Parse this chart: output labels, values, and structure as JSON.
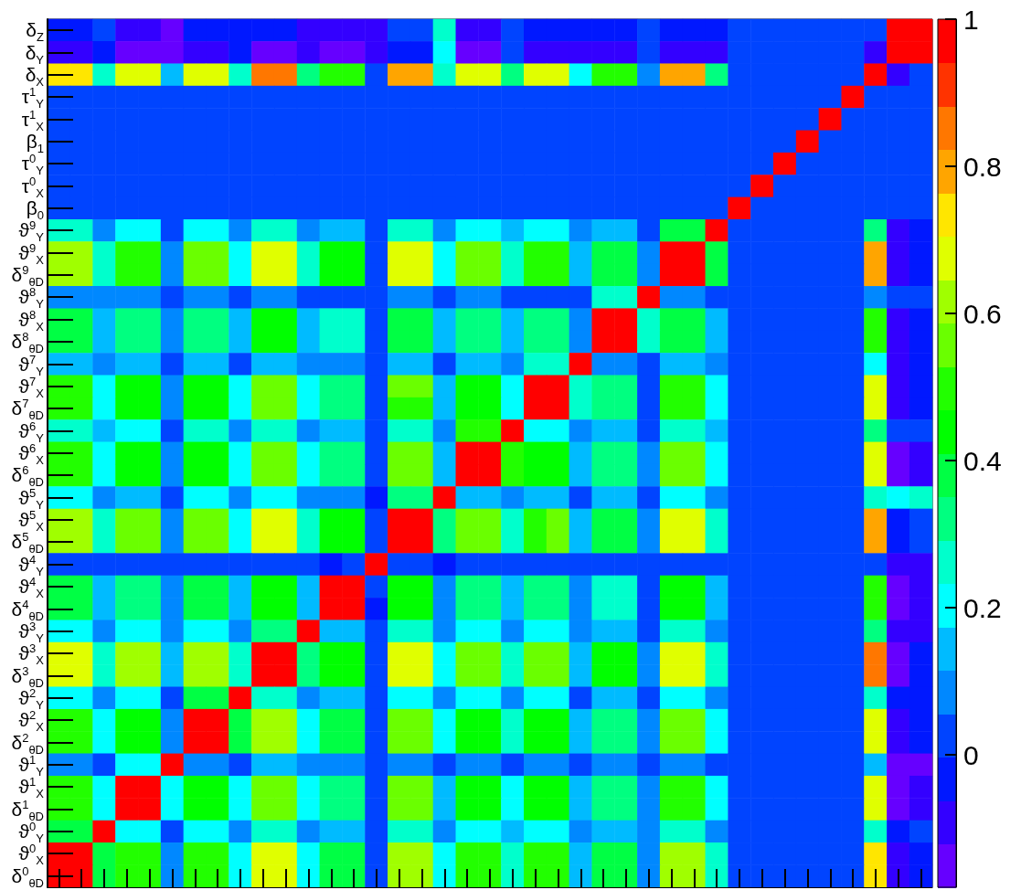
{
  "chart_data": {
    "type": "heatmap",
    "categories": [
      null,
      null,
      null,
      null,
      null,
      null,
      null,
      null,
      null,
      null,
      null,
      null,
      null,
      null,
      null,
      null,
      null,
      null,
      null,
      null,
      null,
      null,
      null,
      null,
      null,
      null,
      null,
      null,
      null,
      null,
      null,
      null,
      null,
      null,
      null,
      null,
      null,
      null,
      null
    ],
    "y_categories": [
      "δ$_{Z}$",
      "δ$_{Y}$",
      "δ$_{X}$",
      "τ$^{1}$$_{Y}$",
      "τ$^{1}$$_{X}$",
      "β$_{1}$",
      "τ$^{0}$$_{Y}$",
      "τ$^{0}$$_{X}$",
      "β$_{0}$",
      "ϑ$^{9}$$_{Y}$",
      "ϑ$^{9}$$_{X}$",
      "δ$^{9}$$_{θD}$",
      "ϑ$^{8}$$_{Y}$",
      "ϑ$^{8}$$_{X}$",
      "δ$^{8}$$_{θD}$",
      "ϑ$^{7}$$_{Y}$",
      "ϑ$^{7}$$_{X}$",
      "δ$^{7}$$_{θD}$",
      "ϑ$^{6}$$_{Y}$",
      "ϑ$^{6}$$_{X}$",
      "δ$^{6}$$_{θD}$",
      "ϑ$^{5}$$_{Y}$",
      "ϑ$^{5}$$_{X}$",
      "δ$^{5}$$_{θD}$",
      "ϑ$^{4}$$_{Y}$",
      "ϑ$^{4}$$_{X}$",
      "δ$^{4}$$_{θD}$",
      "ϑ$^{3}$$_{Y}$",
      "ϑ$^{3}$$_{X}$",
      "δ$^{3}$$_{θD}$",
      "ϑ$^{2}$$_{Y}$",
      "ϑ$^{2}$$_{X}$",
      "δ$^{2}$$_{θD}$",
      "ϑ$^{1}$$_{Y}$",
      "ϑ$^{1}$$_{X}$",
      "δ$^{1}$$_{θD}$",
      "ϑ$^{0}$$_{Y}$",
      "ϑ$^{0}$$_{X}$",
      "δ$^{0}$$_{θD}$"
    ],
    "cells": [
      [
        -0.03,
        -0.03,
        0.03,
        -0.09,
        -0.09,
        -0.15,
        -0.03,
        -0.03,
        -0.03,
        -0.03,
        -0.03,
        -0.09,
        -0.09,
        -0.09,
        -0.09,
        0.03,
        0.03,
        0.26,
        -0.09,
        -0.09,
        0.03,
        -0.03,
        -0.03,
        -0.03,
        -0.03,
        -0.03,
        0.03,
        -0.03,
        -0.03,
        -0.03,
        0.03,
        0.03,
        0.03,
        0.03,
        0.03,
        0.03,
        0.03,
        0.97,
        1
      ],
      [
        -0.09,
        -0.09,
        -0.03,
        -0.15,
        -0.15,
        -0.15,
        -0.09,
        -0.09,
        -0.03,
        -0.15,
        -0.15,
        -0.09,
        -0.15,
        -0.15,
        -0.09,
        -0.03,
        -0.03,
        0.2,
        -0.15,
        -0.15,
        0.03,
        -0.09,
        -0.09,
        -0.09,
        -0.09,
        -0.09,
        0.03,
        -0.09,
        -0.09,
        -0.09,
        0.03,
        0.03,
        0.03,
        0.03,
        0.03,
        0.03,
        -0.09,
        1,
        0.97
      ],
      [
        0.73,
        0.73,
        0.26,
        0.68,
        0.68,
        0.14,
        0.68,
        0.68,
        0.26,
        0.85,
        0.85,
        0.32,
        0.5,
        0.5,
        0.03,
        0.79,
        0.79,
        0.26,
        0.68,
        0.68,
        0.32,
        0.68,
        0.68,
        0.2,
        0.5,
        0.5,
        0.09,
        0.79,
        0.79,
        0.32,
        0.03,
        0.03,
        0.03,
        0.03,
        0.03,
        0.03,
        1,
        -0.09,
        0.03
      ],
      [
        0.03,
        0.03,
        0.03,
        0.03,
        0.03,
        0.03,
        0.03,
        0.03,
        0.03,
        0.03,
        0.03,
        0.03,
        0.03,
        0.03,
        0.03,
        0.03,
        0.03,
        0.03,
        0.03,
        0.03,
        0.03,
        0.03,
        0.03,
        0.03,
        0.03,
        0.03,
        0.03,
        0.03,
        0.03,
        0.03,
        0.03,
        0.03,
        0.03,
        0.03,
        0.03,
        1,
        0.03,
        0.03,
        0.03
      ],
      [
        0.03,
        0.03,
        0.03,
        0.03,
        0.03,
        0.03,
        0.03,
        0.03,
        0.03,
        0.03,
        0.03,
        0.03,
        0.03,
        0.03,
        0.03,
        0.03,
        0.03,
        0.03,
        0.03,
        0.03,
        0.03,
        0.03,
        0.03,
        0.03,
        0.03,
        0.03,
        0.03,
        0.03,
        0.03,
        0.03,
        0.03,
        0.03,
        0.03,
        0.03,
        1,
        0.03,
        0.03,
        0.03,
        0.03
      ],
      [
        0.03,
        0.03,
        0.03,
        0.03,
        0.03,
        0.03,
        0.03,
        0.03,
        0.03,
        0.03,
        0.03,
        0.03,
        0.03,
        0.03,
        0.03,
        0.03,
        0.03,
        0.03,
        0.03,
        0.03,
        0.03,
        0.03,
        0.03,
        0.03,
        0.03,
        0.03,
        0.03,
        0.03,
        0.03,
        0.03,
        0.03,
        0.03,
        0.03,
        1,
        0.03,
        0.03,
        0.03,
        0.03,
        0.03
      ],
      [
        0.03,
        0.03,
        0.03,
        0.03,
        0.03,
        0.03,
        0.03,
        0.03,
        0.03,
        0.03,
        0.03,
        0.03,
        0.03,
        0.03,
        0.03,
        0.03,
        0.03,
        0.03,
        0.03,
        0.03,
        0.03,
        0.03,
        0.03,
        0.03,
        0.03,
        0.03,
        0.03,
        0.03,
        0.03,
        0.03,
        0.03,
        0.03,
        1,
        0.03,
        0.03,
        0.03,
        0.03,
        0.03,
        0.03
      ],
      [
        0.03,
        0.03,
        0.03,
        0.03,
        0.03,
        0.03,
        0.03,
        0.03,
        0.03,
        0.03,
        0.03,
        0.03,
        0.03,
        0.03,
        0.03,
        0.03,
        0.03,
        0.03,
        0.03,
        0.03,
        0.03,
        0.03,
        0.03,
        0.03,
        0.03,
        0.03,
        0.03,
        0.03,
        0.03,
        0.03,
        0.03,
        1,
        0.03,
        0.03,
        0.03,
        0.03,
        0.03,
        0.03,
        0.03
      ],
      [
        0.03,
        0.03,
        0.03,
        0.03,
        0.03,
        0.03,
        0.03,
        0.03,
        0.03,
        0.03,
        0.03,
        0.03,
        0.03,
        0.03,
        0.03,
        0.03,
        0.03,
        0.03,
        0.03,
        0.03,
        0.03,
        0.03,
        0.03,
        0.03,
        0.03,
        0.03,
        0.03,
        0.03,
        0.03,
        0.03,
        1,
        0.03,
        0.03,
        0.03,
        0.03,
        0.03,
        0.03,
        0.03,
        0.03
      ],
      [
        0.26,
        0.26,
        0.09,
        0.2,
        0.2,
        0.03,
        0.2,
        0.2,
        0.09,
        0.26,
        0.26,
        0.09,
        0.14,
        0.14,
        0.03,
        0.26,
        0.26,
        0.09,
        0.2,
        0.2,
        0.14,
        0.2,
        0.2,
        0.09,
        0.14,
        0.14,
        0.03,
        0.38,
        0.38,
        1,
        0.03,
        0.03,
        0.03,
        0.03,
        0.03,
        0.03,
        0.32,
        -0.09,
        -0.03
      ],
      [
        0.62,
        0.62,
        0.26,
        0.5,
        0.5,
        0.09,
        0.56,
        0.56,
        0.2,
        0.68,
        0.68,
        0.26,
        0.44,
        0.44,
        0.03,
        0.68,
        0.68,
        0.2,
        0.56,
        0.56,
        0.26,
        0.5,
        0.5,
        0.14,
        0.38,
        0.38,
        0.09,
        0.97,
        1,
        0.38,
        0.03,
        0.03,
        0.03,
        0.03,
        0.03,
        0.03,
        0.79,
        -0.09,
        -0.03
      ],
      [
        0.62,
        0.62,
        0.26,
        0.5,
        0.5,
        0.09,
        0.56,
        0.56,
        0.2,
        0.68,
        0.68,
        0.26,
        0.44,
        0.44,
        0.03,
        0.68,
        0.68,
        0.2,
        0.56,
        0.56,
        0.26,
        0.5,
        0.5,
        0.14,
        0.38,
        0.38,
        0.09,
        1,
        0.97,
        0.38,
        0.03,
        0.03,
        0.03,
        0.03,
        0.03,
        0.03,
        0.79,
        -0.09,
        -0.03
      ],
      [
        0.09,
        0.09,
        0.09,
        0.09,
        0.09,
        0.03,
        0.09,
        0.09,
        0.03,
        0.09,
        0.09,
        0.03,
        0.03,
        0.03,
        0.03,
        0.09,
        0.09,
        0.03,
        0.09,
        0.09,
        0.03,
        0.03,
        0.03,
        0.03,
        0.26,
        0.26,
        1,
        0.09,
        0.09,
        0.03,
        0.03,
        0.03,
        0.03,
        0.03,
        0.03,
        0.03,
        0.09,
        0.03,
        0.03
      ],
      [
        0.38,
        0.38,
        0.14,
        0.32,
        0.32,
        0.09,
        0.32,
        0.32,
        0.14,
        0.44,
        0.44,
        0.14,
        0.26,
        0.26,
        0.03,
        0.38,
        0.38,
        0.14,
        0.32,
        0.32,
        0.14,
        0.32,
        0.32,
        0.09,
        0.97,
        1,
        0.26,
        0.38,
        0.38,
        0.14,
        0.03,
        0.03,
        0.03,
        0.03,
        0.03,
        0.03,
        0.5,
        -0.09,
        -0.03
      ],
      [
        0.38,
        0.38,
        0.14,
        0.32,
        0.32,
        0.09,
        0.32,
        0.32,
        0.14,
        0.44,
        0.44,
        0.14,
        0.26,
        0.26,
        0.03,
        0.38,
        0.38,
        0.14,
        0.32,
        0.32,
        0.14,
        0.32,
        0.32,
        0.09,
        1,
        0.97,
        0.26,
        0.38,
        0.38,
        0.14,
        0.03,
        0.03,
        0.03,
        0.03,
        0.03,
        0.03,
        0.5,
        -0.09,
        -0.03
      ],
      [
        0.14,
        0.14,
        0.09,
        0.14,
        0.14,
        0.03,
        0.14,
        0.14,
        0.03,
        0.14,
        0.14,
        0.09,
        0.09,
        0.09,
        0.03,
        0.14,
        0.14,
        0.03,
        0.14,
        0.14,
        0.09,
        0.26,
        0.26,
        1,
        0.09,
        0.09,
        0.03,
        0.14,
        0.14,
        0.09,
        0.03,
        0.03,
        0.03,
        0.03,
        0.03,
        0.03,
        0.2,
        -0.09,
        -0.03
      ],
      [
        0.5,
        0.5,
        0.2,
        0.44,
        0.44,
        0.09,
        0.44,
        0.44,
        0.2,
        0.56,
        0.56,
        0.2,
        0.32,
        0.32,
        0.03,
        0.56,
        0.56,
        0.14,
        0.44,
        0.44,
        0.2,
        0.97,
        1,
        0.26,
        0.32,
        0.32,
        0.03,
        0.5,
        0.5,
        0.2,
        0.03,
        0.03,
        0.03,
        0.03,
        0.03,
        0.03,
        0.68,
        -0.09,
        -0.03
      ],
      [
        0.5,
        0.5,
        0.2,
        0.44,
        0.44,
        0.09,
        0.44,
        0.44,
        0.2,
        0.56,
        0.56,
        0.2,
        0.32,
        0.32,
        0.03,
        0.5,
        0.5,
        0.14,
        0.44,
        0.44,
        0.2,
        1,
        0.97,
        0.26,
        0.32,
        0.32,
        0.03,
        0.5,
        0.5,
        0.2,
        0.03,
        0.03,
        0.03,
        0.03,
        0.03,
        0.03,
        0.68,
        -0.09,
        -0.03
      ],
      [
        0.26,
        0.26,
        0.14,
        0.2,
        0.2,
        0.03,
        0.26,
        0.26,
        0.09,
        0.26,
        0.26,
        0.09,
        0.14,
        0.14,
        0.03,
        0.26,
        0.26,
        0.09,
        0.5,
        0.5,
        1,
        0.2,
        0.2,
        0.09,
        0.14,
        0.14,
        0.03,
        0.26,
        0.26,
        0.14,
        0.03,
        0.03,
        0.03,
        0.03,
        0.03,
        0.03,
        0.32,
        0.03,
        0.03
      ],
      [
        0.5,
        0.5,
        0.2,
        0.44,
        0.44,
        0.09,
        0.44,
        0.44,
        0.2,
        0.56,
        0.56,
        0.2,
        0.32,
        0.32,
        0.03,
        0.56,
        0.56,
        0.14,
        0.97,
        1,
        0.5,
        0.44,
        0.44,
        0.14,
        0.32,
        0.32,
        0.09,
        0.56,
        0.56,
        0.2,
        0.03,
        0.03,
        0.03,
        0.03,
        0.03,
        0.03,
        0.68,
        -0.15,
        -0.09
      ],
      [
        0.5,
        0.5,
        0.2,
        0.44,
        0.44,
        0.09,
        0.44,
        0.44,
        0.2,
        0.56,
        0.56,
        0.2,
        0.32,
        0.32,
        0.03,
        0.56,
        0.56,
        0.14,
        1,
        0.97,
        0.5,
        0.44,
        0.44,
        0.14,
        0.32,
        0.32,
        0.09,
        0.56,
        0.56,
        0.2,
        0.03,
        0.03,
        0.03,
        0.03,
        0.03,
        0.03,
        0.68,
        -0.15,
        -0.09
      ],
      [
        0.2,
        0.2,
        0.09,
        0.14,
        0.14,
        0.03,
        0.2,
        0.2,
        0.09,
        0.2,
        0.2,
        0.09,
        0.09,
        0.09,
        -0.03,
        0.32,
        0.32,
        1,
        0.14,
        0.14,
        0.09,
        0.14,
        0.14,
        0.03,
        0.14,
        0.14,
        0.03,
        0.2,
        0.2,
        0.09,
        0.03,
        0.03,
        0.03,
        0.03,
        0.03,
        0.03,
        0.26,
        0.2,
        0.26
      ],
      [
        0.62,
        0.62,
        0.26,
        0.56,
        0.56,
        0.09,
        0.56,
        0.56,
        0.2,
        0.68,
        0.68,
        0.26,
        0.44,
        0.44,
        0.03,
        0.97,
        1,
        0.32,
        0.56,
        0.56,
        0.26,
        0.5,
        0.56,
        0.14,
        0.38,
        0.38,
        0.09,
        0.68,
        0.68,
        0.26,
        0.03,
        0.03,
        0.03,
        0.03,
        0.03,
        0.03,
        0.79,
        -0.03,
        0.03
      ],
      [
        0.62,
        0.62,
        0.26,
        0.56,
        0.56,
        0.09,
        0.56,
        0.56,
        0.2,
        0.68,
        0.68,
        0.26,
        0.44,
        0.44,
        0.03,
        1,
        0.97,
        0.32,
        0.56,
        0.56,
        0.26,
        0.5,
        0.56,
        0.14,
        0.38,
        0.38,
        0.09,
        0.68,
        0.68,
        0.26,
        0.03,
        0.03,
        0.03,
        0.03,
        0.03,
        0.03,
        0.79,
        -0.03,
        0.03
      ],
      [
        0.03,
        0.03,
        0.03,
        0.03,
        0.03,
        0.03,
        0.03,
        0.03,
        0.03,
        0.03,
        0.03,
        0.03,
        -0.03,
        0.03,
        1,
        0.03,
        0.03,
        -0.03,
        0.03,
        0.03,
        0.03,
        0.03,
        0.03,
        0.03,
        0.03,
        0.03,
        0.03,
        0.03,
        0.03,
        0.03,
        0.03,
        0.03,
        0.03,
        0.03,
        0.03,
        0.03,
        0.03,
        -0.09,
        -0.09
      ],
      [
        0.38,
        0.38,
        0.14,
        0.32,
        0.32,
        0.09,
        0.38,
        0.38,
        0.14,
        0.44,
        0.44,
        0.14,
        0.97,
        1,
        0.03,
        0.44,
        0.44,
        0.09,
        0.32,
        0.32,
        0.14,
        0.32,
        0.32,
        0.09,
        0.26,
        0.26,
        0.03,
        0.44,
        0.44,
        0.14,
        0.03,
        0.03,
        0.03,
        0.03,
        0.03,
        0.03,
        0.5,
        -0.15,
        -0.09
      ],
      [
        0.38,
        0.38,
        0.14,
        0.32,
        0.32,
        0.09,
        0.38,
        0.38,
        0.14,
        0.44,
        0.44,
        0.14,
        1,
        0.97,
        -0.03,
        0.44,
        0.44,
        0.09,
        0.32,
        0.32,
        0.14,
        0.32,
        0.32,
        0.09,
        0.26,
        0.26,
        0.03,
        0.44,
        0.44,
        0.14,
        0.03,
        0.03,
        0.03,
        0.03,
        0.03,
        0.03,
        0.5,
        -0.15,
        -0.09
      ],
      [
        0.2,
        0.2,
        0.09,
        0.2,
        0.2,
        0.09,
        0.2,
        0.2,
        0.09,
        0.32,
        0.32,
        1,
        0.14,
        0.14,
        0.03,
        0.26,
        0.26,
        0.09,
        0.2,
        0.2,
        0.09,
        0.2,
        0.2,
        0.09,
        0.14,
        0.14,
        0.03,
        0.26,
        0.26,
        0.09,
        0.03,
        0.03,
        0.03,
        0.03,
        0.03,
        0.03,
        0.32,
        -0.09,
        -0.09
      ],
      [
        0.68,
        0.68,
        0.26,
        0.62,
        0.62,
        0.14,
        0.62,
        0.62,
        0.26,
        0.97,
        1,
        0.32,
        0.44,
        0.44,
        0.03,
        0.68,
        0.68,
        0.2,
        0.56,
        0.56,
        0.26,
        0.56,
        0.56,
        0.14,
        0.44,
        0.44,
        0.09,
        0.68,
        0.68,
        0.26,
        0.03,
        0.03,
        0.03,
        0.03,
        0.03,
        0.03,
        0.85,
        -0.15,
        -0.03
      ],
      [
        0.68,
        0.68,
        0.26,
        0.62,
        0.62,
        0.14,
        0.62,
        0.62,
        0.26,
        1,
        0.97,
        0.32,
        0.44,
        0.44,
        0.03,
        0.68,
        0.68,
        0.2,
        0.56,
        0.56,
        0.26,
        0.56,
        0.56,
        0.14,
        0.44,
        0.44,
        0.09,
        0.68,
        0.68,
        0.26,
        0.03,
        0.03,
        0.03,
        0.03,
        0.03,
        0.03,
        0.85,
        -0.15,
        -0.03
      ],
      [
        0.2,
        0.2,
        0.09,
        0.2,
        0.2,
        0.03,
        0.38,
        0.38,
        1,
        0.26,
        0.26,
        0.09,
        0.14,
        0.14,
        0.03,
        0.2,
        0.2,
        0.09,
        0.2,
        0.2,
        0.09,
        0.2,
        0.2,
        0.03,
        0.14,
        0.14,
        0.03,
        0.2,
        0.2,
        0.09,
        0.03,
        0.03,
        0.03,
        0.03,
        0.03,
        0.03,
        0.26,
        -0.03,
        -0.03
      ],
      [
        0.5,
        0.5,
        0.2,
        0.44,
        0.44,
        0.09,
        0.97,
        1,
        0.38,
        0.62,
        0.62,
        0.2,
        0.38,
        0.38,
        0.03,
        0.56,
        0.56,
        0.2,
        0.44,
        0.44,
        0.26,
        0.44,
        0.44,
        0.14,
        0.32,
        0.32,
        0.09,
        0.56,
        0.56,
        0.2,
        0.03,
        0.03,
        0.03,
        0.03,
        0.03,
        0.03,
        0.68,
        -0.09,
        -0.03
      ],
      [
        0.5,
        0.5,
        0.2,
        0.44,
        0.44,
        0.09,
        1,
        0.97,
        0.38,
        0.62,
        0.62,
        0.2,
        0.38,
        0.38,
        0.03,
        0.56,
        0.56,
        0.2,
        0.44,
        0.44,
        0.26,
        0.44,
        0.44,
        0.14,
        0.32,
        0.32,
        0.09,
        0.56,
        0.56,
        0.2,
        0.03,
        0.03,
        0.03,
        0.03,
        0.03,
        0.03,
        0.68,
        -0.09,
        -0.03
      ],
      [
        0.09,
        0.09,
        0.03,
        0.2,
        0.2,
        1,
        0.09,
        0.09,
        0.03,
        0.14,
        0.14,
        0.09,
        0.09,
        0.09,
        0.03,
        0.09,
        0.09,
        0.03,
        0.09,
        0.09,
        0.03,
        0.09,
        0.09,
        0.03,
        0.09,
        0.09,
        0.03,
        0.09,
        0.09,
        0.03,
        0.03,
        0.03,
        0.03,
        0.03,
        0.03,
        0.03,
        0.14,
        -0.15,
        -0.15
      ],
      [
        0.5,
        0.5,
        0.2,
        0.97,
        1,
        0.2,
        0.44,
        0.44,
        0.2,
        0.56,
        0.56,
        0.2,
        0.32,
        0.32,
        0.03,
        0.56,
        0.56,
        0.14,
        0.44,
        0.44,
        0.2,
        0.44,
        0.44,
        0.14,
        0.32,
        0.32,
        0.09,
        0.5,
        0.5,
        0.2,
        0.03,
        0.03,
        0.03,
        0.03,
        0.03,
        0.03,
        0.68,
        -0.15,
        -0.09
      ],
      [
        0.5,
        0.5,
        0.2,
        1,
        0.97,
        0.2,
        0.44,
        0.44,
        0.2,
        0.56,
        0.56,
        0.2,
        0.32,
        0.32,
        0.03,
        0.56,
        0.56,
        0.14,
        0.44,
        0.44,
        0.2,
        0.44,
        0.44,
        0.14,
        0.32,
        0.32,
        0.09,
        0.5,
        0.5,
        0.2,
        0.03,
        0.03,
        0.03,
        0.03,
        0.03,
        0.03,
        0.68,
        -0.15,
        -0.09
      ],
      [
        0.38,
        0.38,
        1,
        0.2,
        0.2,
        0.03,
        0.2,
        0.2,
        0.09,
        0.26,
        0.26,
        0.09,
        0.14,
        0.14,
        0.03,
        0.26,
        0.26,
        0.09,
        0.2,
        0.2,
        0.14,
        0.2,
        0.2,
        0.09,
        0.14,
        0.14,
        0.09,
        0.26,
        0.26,
        0.09,
        0.03,
        0.03,
        0.03,
        0.03,
        0.03,
        0.03,
        0.26,
        -0.03,
        0.03
      ],
      [
        0.97,
        1,
        0.38,
        0.5,
        0.5,
        0.09,
        0.5,
        0.5,
        0.2,
        0.68,
        0.68,
        0.2,
        0.38,
        0.38,
        0.03,
        0.62,
        0.62,
        0.2,
        0.5,
        0.5,
        0.26,
        0.5,
        0.5,
        0.14,
        0.38,
        0.38,
        0.09,
        0.62,
        0.62,
        0.26,
        0.03,
        0.03,
        0.03,
        0.03,
        0.03,
        0.03,
        0.73,
        -0.09,
        -0.03
      ],
      [
        1,
        0.97,
        0.38,
        0.5,
        0.5,
        0.09,
        0.5,
        0.5,
        0.2,
        0.68,
        0.68,
        0.2,
        0.38,
        0.38,
        0.03,
        0.62,
        0.62,
        0.2,
        0.5,
        0.5,
        0.26,
        0.5,
        0.5,
        0.14,
        0.38,
        0.38,
        0.09,
        0.62,
        0.62,
        0.26,
        0.03,
        0.03,
        0.03,
        0.03,
        0.03,
        0.03,
        0.73,
        -0.09,
        -0.03
      ]
    ],
    "clim": [
      -0.18,
      1
    ],
    "cticks": [
      0,
      0.2,
      0.4,
      0.6,
      0.8,
      1
    ],
    "tick_labels": "y"
  }
}
